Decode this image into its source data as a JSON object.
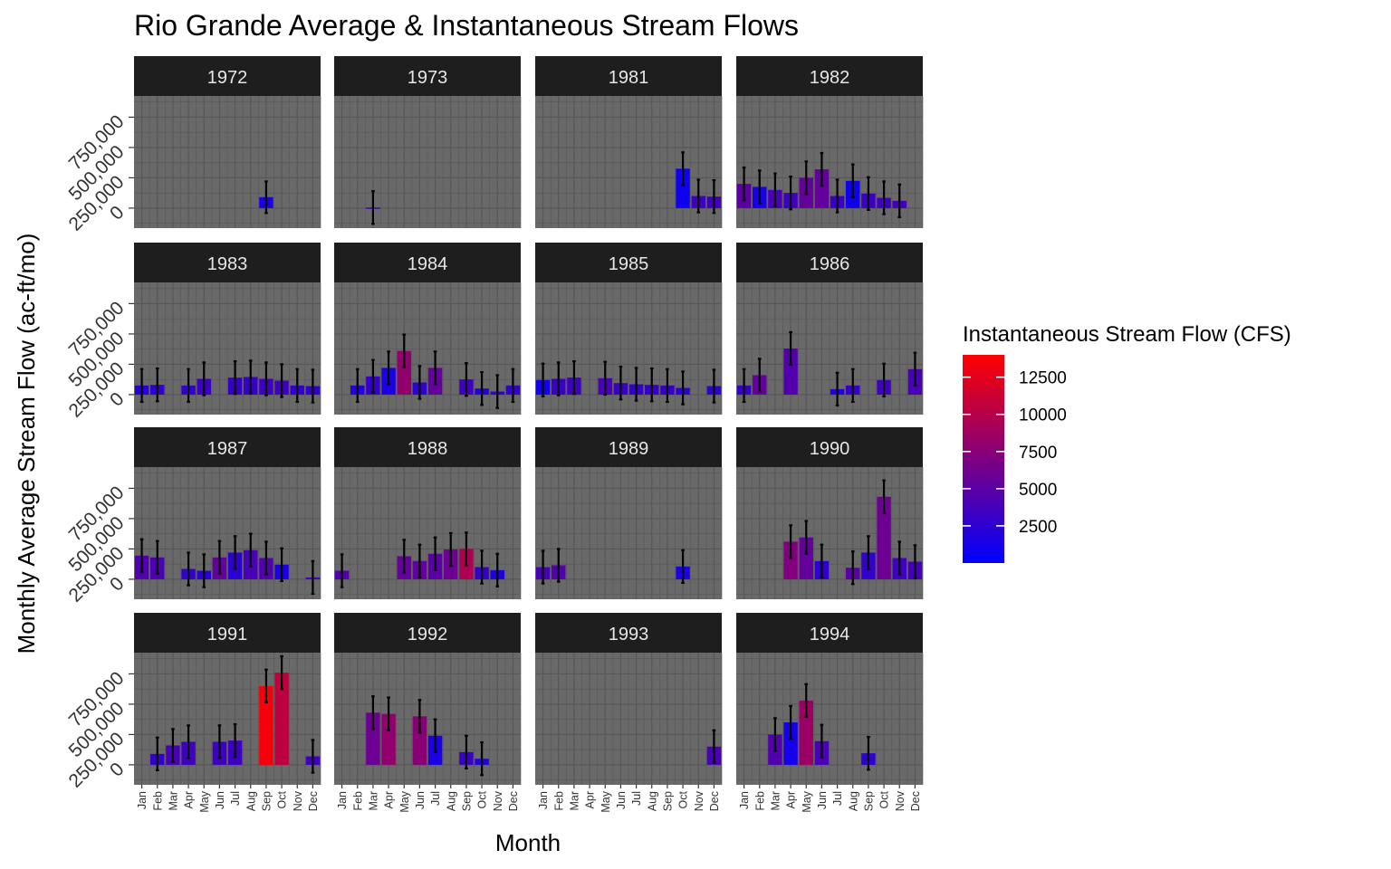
{
  "chart_data": {
    "type": "bar",
    "title": "Rio Grande Average & Instantaneous Stream Flows",
    "xlabel": "Month",
    "ylabel": "Monthly Average Stream Flow (ac-ft/mo)",
    "categories": [
      "Jan",
      "Feb",
      "Mar",
      "Apr",
      "May",
      "Jun",
      "Jul",
      "Aug",
      "Sep",
      "Oct",
      "Nov",
      "Dec"
    ],
    "ylim": [
      -165000,
      925000
    ],
    "yticks": [
      0,
      250000,
      500000,
      750000
    ],
    "ytick_labels": [
      "0",
      "250,000",
      "500,000",
      "750,000"
    ],
    "grid": true,
    "legend": {
      "title": "Instantaneous Stream Flow (CFS)",
      "placement": "right",
      "min": 0,
      "max": 14000,
      "ticks": [
        2500,
        5000,
        7500,
        10000,
        12500
      ],
      "tick_labels": [
        "2500",
        "5000",
        "7500",
        "10000",
        "12500"
      ],
      "low_color": "#0000ff",
      "high_color": "#ff0000"
    },
    "colors": {
      "panel_bg": "#696969",
      "strip_bg": "#1e1e1e",
      "grid": "#585858",
      "error_bar": "#000000"
    },
    "panels": [
      {
        "year": "1972",
        "bars": [
          {
            "m": 9,
            "v": 90000,
            "e": 130000,
            "c": 1500
          }
        ]
      },
      {
        "year": "1973",
        "bars": [
          {
            "m": 3,
            "v": 5000,
            "e": 135000,
            "c": 3300
          }
        ]
      },
      {
        "year": "1981",
        "bars": [
          {
            "m": 10,
            "v": 325000,
            "e": 135000,
            "c": 800
          },
          {
            "m": 11,
            "v": 100000,
            "e": 135000,
            "c": 3500
          },
          {
            "m": 12,
            "v": 95000,
            "e": 135000,
            "c": 3600
          }
        ]
      },
      {
        "year": "1982",
        "bars": [
          {
            "m": 1,
            "v": 200000,
            "e": 135000,
            "c": 5000
          },
          {
            "m": 2,
            "v": 175000,
            "e": 135000,
            "c": 1200
          },
          {
            "m": 3,
            "v": 150000,
            "e": 135000,
            "c": 4000
          },
          {
            "m": 4,
            "v": 125000,
            "e": 135000,
            "c": 3500
          },
          {
            "m": 5,
            "v": 250000,
            "e": 135000,
            "c": 5500
          },
          {
            "m": 6,
            "v": 320000,
            "e": 135000,
            "c": 5500
          },
          {
            "m": 7,
            "v": 100000,
            "e": 135000,
            "c": 3200
          },
          {
            "m": 8,
            "v": 225000,
            "e": 135000,
            "c": 800
          },
          {
            "m": 9,
            "v": 120000,
            "e": 135000,
            "c": 3300
          },
          {
            "m": 10,
            "v": 85000,
            "e": 135000,
            "c": 3500
          },
          {
            "m": 11,
            "v": 60000,
            "e": 135000,
            "c": 3600
          }
        ]
      },
      {
        "year": "1983",
        "bars": [
          {
            "m": 1,
            "v": 75000,
            "e": 135000,
            "c": 2200
          },
          {
            "m": 2,
            "v": 80000,
            "e": 135000,
            "c": 2700
          },
          {
            "m": 4,
            "v": 75000,
            "e": 135000,
            "c": 2800
          },
          {
            "m": 5,
            "v": 130000,
            "e": 135000,
            "c": 3200
          },
          {
            "m": 7,
            "v": 140000,
            "e": 135000,
            "c": 3000
          },
          {
            "m": 8,
            "v": 145000,
            "e": 135000,
            "c": 3000
          },
          {
            "m": 9,
            "v": 130000,
            "e": 135000,
            "c": 3500
          },
          {
            "m": 10,
            "v": 115000,
            "e": 135000,
            "c": 3500
          },
          {
            "m": 11,
            "v": 75000,
            "e": 135000,
            "c": 2700
          },
          {
            "m": 12,
            "v": 70000,
            "e": 135000,
            "c": 2700
          }
        ]
      },
      {
        "year": "1984",
        "bars": [
          {
            "m": 2,
            "v": 75000,
            "e": 135000,
            "c": 1800
          },
          {
            "m": 3,
            "v": 150000,
            "e": 135000,
            "c": 3000
          },
          {
            "m": 4,
            "v": 220000,
            "e": 135000,
            "c": 1500
          },
          {
            "m": 5,
            "v": 360000,
            "e": 135000,
            "c": 8000
          },
          {
            "m": 6,
            "v": 100000,
            "e": 135000,
            "c": 2500
          },
          {
            "m": 7,
            "v": 220000,
            "e": 135000,
            "c": 5500
          },
          {
            "m": 9,
            "v": 125000,
            "e": 135000,
            "c": 3500
          },
          {
            "m": 10,
            "v": 50000,
            "e": 135000,
            "c": 2200
          },
          {
            "m": 11,
            "v": 25000,
            "e": 135000,
            "c": 2500
          },
          {
            "m": 12,
            "v": 75000,
            "e": 135000,
            "c": 2800
          }
        ]
      },
      {
        "year": "1985",
        "bars": [
          {
            "m": 1,
            "v": 120000,
            "e": 135000,
            "c": 1000
          },
          {
            "m": 2,
            "v": 130000,
            "e": 135000,
            "c": 3300
          },
          {
            "m": 3,
            "v": 140000,
            "e": 135000,
            "c": 3500
          },
          {
            "m": 5,
            "v": 135000,
            "e": 135000,
            "c": 4000
          },
          {
            "m": 6,
            "v": 95000,
            "e": 135000,
            "c": 3200
          },
          {
            "m": 7,
            "v": 85000,
            "e": 135000,
            "c": 3000
          },
          {
            "m": 8,
            "v": 80000,
            "e": 135000,
            "c": 3000
          },
          {
            "m": 9,
            "v": 75000,
            "e": 135000,
            "c": 3000
          },
          {
            "m": 10,
            "v": 55000,
            "e": 135000,
            "c": 2500
          },
          {
            "m": 12,
            "v": 70000,
            "e": 135000,
            "c": 2500
          }
        ]
      },
      {
        "year": "1986",
        "bars": [
          {
            "m": 1,
            "v": 75000,
            "e": 135000,
            "c": 3000
          },
          {
            "m": 2,
            "v": 160000,
            "e": 135000,
            "c": 5500
          },
          {
            "m": 4,
            "v": 380000,
            "e": 135000,
            "c": 4500
          },
          {
            "m": 7,
            "v": 45000,
            "e": 135000,
            "c": 1800
          },
          {
            "m": 8,
            "v": 75000,
            "e": 135000,
            "c": 3000
          },
          {
            "m": 10,
            "v": 120000,
            "e": 135000,
            "c": 3500
          },
          {
            "m": 12,
            "v": 210000,
            "e": 135000,
            "c": 4000
          }
        ]
      },
      {
        "year": "1987",
        "bars": [
          {
            "m": 1,
            "v": 195000,
            "e": 135000,
            "c": 4500
          },
          {
            "m": 2,
            "v": 180000,
            "e": 135000,
            "c": 4200
          },
          {
            "m": 4,
            "v": 85000,
            "e": 135000,
            "c": 2800
          },
          {
            "m": 5,
            "v": 70000,
            "e": 135000,
            "c": 2300
          },
          {
            "m": 6,
            "v": 180000,
            "e": 135000,
            "c": 5500
          },
          {
            "m": 7,
            "v": 220000,
            "e": 135000,
            "c": 2500
          },
          {
            "m": 8,
            "v": 240000,
            "e": 135000,
            "c": 4000
          },
          {
            "m": 9,
            "v": 175000,
            "e": 135000,
            "c": 4500
          },
          {
            "m": 10,
            "v": 120000,
            "e": 135000,
            "c": 1500
          },
          {
            "m": 12,
            "v": 15000,
            "e": 135000,
            "c": 3500
          }
        ]
      },
      {
        "year": "1988",
        "bars": [
          {
            "m": 1,
            "v": 70000,
            "e": 135000,
            "c": 4500
          },
          {
            "m": 5,
            "v": 190000,
            "e": 135000,
            "c": 5500
          },
          {
            "m": 6,
            "v": 150000,
            "e": 135000,
            "c": 5500
          },
          {
            "m": 7,
            "v": 210000,
            "e": 135000,
            "c": 5000
          },
          {
            "m": 8,
            "v": 245000,
            "e": 135000,
            "c": 6000
          },
          {
            "m": 9,
            "v": 250000,
            "e": 135000,
            "c": 9500
          },
          {
            "m": 10,
            "v": 100000,
            "e": 135000,
            "c": 3000
          },
          {
            "m": 11,
            "v": 75000,
            "e": 135000,
            "c": 1800
          }
        ]
      },
      {
        "year": "1989",
        "bars": [
          {
            "m": 1,
            "v": 100000,
            "e": 135000,
            "c": 4000
          },
          {
            "m": 2,
            "v": 115000,
            "e": 135000,
            "c": 4500
          },
          {
            "m": 10,
            "v": 105000,
            "e": 135000,
            "c": 1500
          }
        ]
      },
      {
        "year": "1990",
        "bars": [
          {
            "m": 4,
            "v": 310000,
            "e": 135000,
            "c": 7000
          },
          {
            "m": 5,
            "v": 345000,
            "e": 135000,
            "c": 5500
          },
          {
            "m": 6,
            "v": 150000,
            "e": 135000,
            "c": 2500
          },
          {
            "m": 8,
            "v": 95000,
            "e": 135000,
            "c": 5000
          },
          {
            "m": 9,
            "v": 220000,
            "e": 135000,
            "c": 2800
          },
          {
            "m": 10,
            "v": 680000,
            "e": 135000,
            "c": 6000
          },
          {
            "m": 11,
            "v": 175000,
            "e": 135000,
            "c": 3500
          },
          {
            "m": 12,
            "v": 145000,
            "e": 135000,
            "c": 3800
          }
        ]
      },
      {
        "year": "1991",
        "bars": [
          {
            "m": 2,
            "v": 90000,
            "e": 135000,
            "c": 2800
          },
          {
            "m": 3,
            "v": 160000,
            "e": 135000,
            "c": 4000
          },
          {
            "m": 4,
            "v": 190000,
            "e": 135000,
            "c": 3500
          },
          {
            "m": 6,
            "v": 190000,
            "e": 135000,
            "c": 3500
          },
          {
            "m": 7,
            "v": 200000,
            "e": 135000,
            "c": 3300
          },
          {
            "m": 9,
            "v": 650000,
            "e": 135000,
            "c": 13500
          },
          {
            "m": 10,
            "v": 760000,
            "e": 135000,
            "c": 10500
          },
          {
            "m": 12,
            "v": 70000,
            "e": 135000,
            "c": 3500
          }
        ]
      },
      {
        "year": "1992",
        "bars": [
          {
            "m": 3,
            "v": 430000,
            "e": 135000,
            "c": 6000
          },
          {
            "m": 4,
            "v": 420000,
            "e": 135000,
            "c": 8000
          },
          {
            "m": 6,
            "v": 400000,
            "e": 135000,
            "c": 7500
          },
          {
            "m": 7,
            "v": 240000,
            "e": 135000,
            "c": 1500
          },
          {
            "m": 9,
            "v": 105000,
            "e": 135000,
            "c": 3200
          },
          {
            "m": 10,
            "v": 50000,
            "e": 135000,
            "c": 2000
          }
        ]
      },
      {
        "year": "1993",
        "bars": [
          {
            "m": 12,
            "v": 150000,
            "e": 135000,
            "c": 4000
          }
        ]
      },
      {
        "year": "1994",
        "bars": [
          {
            "m": 3,
            "v": 250000,
            "e": 135000,
            "c": 4500
          },
          {
            "m": 4,
            "v": 350000,
            "e": 135000,
            "c": 1200
          },
          {
            "m": 5,
            "v": 530000,
            "e": 135000,
            "c": 8500
          },
          {
            "m": 6,
            "v": 195000,
            "e": 135000,
            "c": 4000
          },
          {
            "m": 9,
            "v": 95000,
            "e": 135000,
            "c": 2500
          }
        ]
      }
    ]
  }
}
